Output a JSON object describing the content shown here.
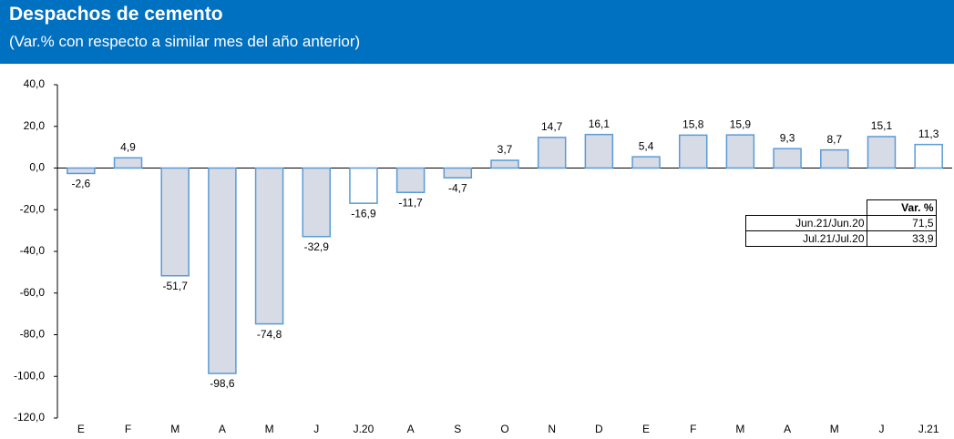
{
  "chart_data": {
    "type": "bar",
    "title": "Despachos de cemento",
    "subtitle": "(Var.% con respecto a similar mes del año anterior)",
    "categories": [
      "E",
      "F",
      "M",
      "A",
      "M",
      "J",
      "J.20",
      "A",
      "S",
      "O",
      "N",
      "D",
      "E",
      "F",
      "M",
      "A",
      "M",
      "J",
      "J.21"
    ],
    "values": [
      -2.6,
      4.9,
      -51.7,
      -98.6,
      -74.8,
      -32.9,
      -16.9,
      -11.7,
      -4.7,
      3.7,
      14.7,
      16.1,
      5.4,
      15.8,
      15.9,
      9.3,
      8.7,
      15.1,
      11.3
    ],
    "value_labels": [
      "-2,6",
      "4,9",
      "-51,7",
      "-98,6",
      "-74,8",
      "-32,9",
      "-16,9",
      "-11,7",
      "-4,7",
      "3,7",
      "14,7",
      "16,1",
      "5,4",
      "15,8",
      "15,9",
      "9,3",
      "8,7",
      "15,1",
      "11,3"
    ],
    "bar_fills": [
      "#d6dbe6",
      "#d6dbe6",
      "#d6dbe6",
      "#d6dbe6",
      "#d6dbe6",
      "#d6dbe6",
      "#ffffff",
      "#d6dbe6",
      "#d6dbe6",
      "#d6dbe6",
      "#d6dbe6",
      "#d6dbe6",
      "#d6dbe6",
      "#d6dbe6",
      "#d6dbe6",
      "#d6dbe6",
      "#d6dbe6",
      "#d6dbe6",
      "#ffffff"
    ],
    "border_color": "#5b9bd5",
    "ylim": [
      -120,
      40
    ],
    "yticks": [
      {
        "value": -120,
        "label": "-120,0"
      },
      {
        "value": -100,
        "label": "-100,0"
      },
      {
        "value": -80,
        "label": "-80,0"
      },
      {
        "value": -60,
        "label": "-60,0"
      },
      {
        "value": -40,
        "label": "-40,0"
      },
      {
        "value": -20,
        "label": "-20,0"
      },
      {
        "value": 0,
        "label": "0,0"
      },
      {
        "value": 20,
        "label": "20,0"
      },
      {
        "value": 40,
        "label": "40,0"
      }
    ],
    "grid": false
  },
  "table": {
    "header": "Var. %",
    "rows": [
      [
        "Jun.21/Jun.20",
        "71,5"
      ],
      [
        "Jul.21/Jul.20",
        "33,9"
      ]
    ]
  }
}
